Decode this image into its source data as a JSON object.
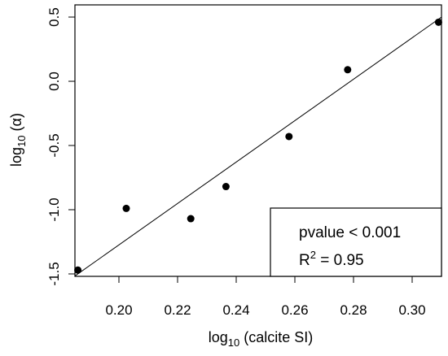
{
  "chart_data": {
    "type": "scatter",
    "title": "",
    "xlabel": {
      "prefix": "log",
      "sub": "10",
      "suffix": " (calcite SI)"
    },
    "ylabel": {
      "prefix": "log",
      "sub": "10",
      "suffix": " (α)"
    },
    "xlim": [
      0.185,
      0.31
    ],
    "ylim": [
      -1.5,
      0.5
    ],
    "x_ticks": [
      "0.20",
      "0.22",
      "0.24",
      "0.26",
      "0.28",
      "0.30"
    ],
    "x_tick_values": [
      0.2,
      0.22,
      0.24,
      0.26,
      0.28,
      0.3
    ],
    "y_ticks": [
      "-1.5",
      "-1.0",
      "-0.5",
      "0.0",
      "0.5"
    ],
    "y_tick_values": [
      -1.5,
      -1.0,
      -0.5,
      0.0,
      0.5
    ],
    "points": [
      {
        "x": 0.186,
        "y": -1.47
      },
      {
        "x": 0.2025,
        "y": -0.99
      },
      {
        "x": 0.2245,
        "y": -1.07
      },
      {
        "x": 0.2365,
        "y": -0.82
      },
      {
        "x": 0.258,
        "y": -0.43
      },
      {
        "x": 0.278,
        "y": 0.09
      },
      {
        "x": 0.309,
        "y": 0.46
      }
    ],
    "fit_line": {
      "x": [
        0.186,
        0.31
      ],
      "y": [
        -1.5,
        0.5
      ]
    },
    "grid": false,
    "annotations": {
      "pvalue": "pvalue < 0.001",
      "r2_prefix": "R",
      "r2_sup": "2",
      "r2_suffix": " = 0.95"
    }
  }
}
